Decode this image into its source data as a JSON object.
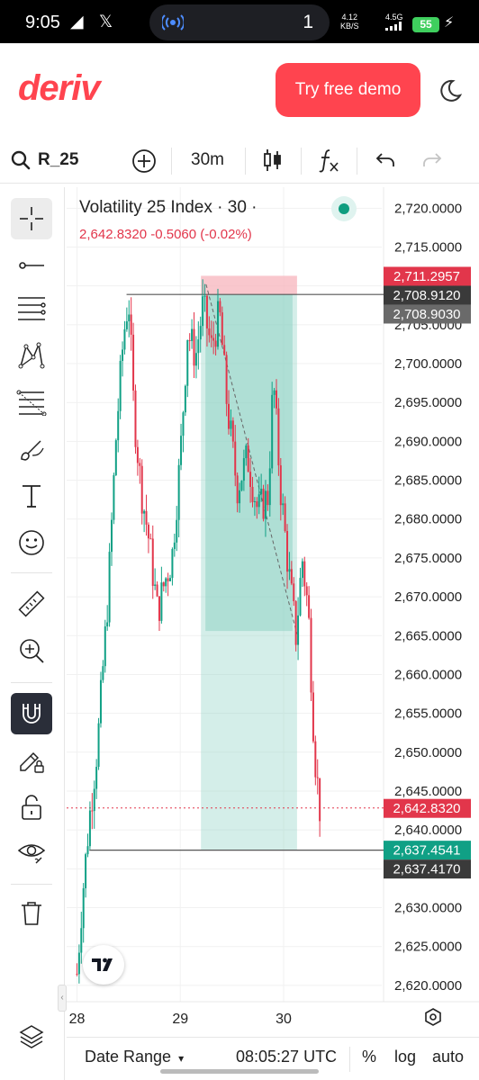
{
  "status_bar": {
    "time": "9:05",
    "app_icons": "◢ 𝕏",
    "pill_count": "1",
    "speed_value": "4.12",
    "speed_unit": "KB/S",
    "network": "4.5G",
    "battery": "55"
  },
  "header": {
    "logo": "deriv",
    "demo_button": "Try free demo"
  },
  "toolbar": {
    "symbol": "R_25",
    "interval": "30m"
  },
  "chart_header": {
    "title": "Volatility 25 Index · 30 ·",
    "quote": "2,642.8320  -0.5060 (-0.02%)"
  },
  "bottom_bar": {
    "date_range": "Date Range",
    "utc_time": "08:05:27 UTC",
    "percent": "%",
    "log": "log",
    "auto": "auto"
  },
  "colors": {
    "up": "#10a085",
    "down": "#e2364b",
    "brand": "#ff444f",
    "profit_zone": "#8fd3c4",
    "loss_zone": "#f7b4bc"
  },
  "chart_data": {
    "type": "candlestick",
    "title": "Volatility 25 Index · 30 ·",
    "x_ticks": [
      "28",
      "29",
      "30"
    ],
    "x_tick_positions": [
      0.0,
      1.0,
      2.0
    ],
    "y_ticks": [
      2720,
      2715,
      2710,
      2705,
      2700,
      2695,
      2690,
      2685,
      2680,
      2675,
      2670,
      2665,
      2660,
      2655,
      2650,
      2645,
      2640,
      2635,
      2630,
      2625,
      2620
    ],
    "y_tick_labels": [
      "2,720.0000",
      "2,715.0000",
      "2,710.0000",
      "2,705.0000",
      "2,700.0000",
      "2,695.0000",
      "2,690.0000",
      "2,685.0000",
      "2,680.0000",
      "2,675.0000",
      "2,670.0000",
      "2,665.0000",
      "2,660.0000",
      "2,655.0000",
      "2,650.0000",
      "2,645.0000",
      "2,640.0000",
      "2,635.0000",
      "2,630.0000",
      "2,625.0000",
      "2,620.0000"
    ],
    "ylim": [
      2617.9,
      2722.7
    ],
    "xlim": [
      -0.1,
      2.95
    ],
    "price_labels": [
      {
        "value": 2711.2957,
        "label": "2,711.2957",
        "kind": "short-stop"
      },
      {
        "value": 2708.912,
        "label": "2,708.9120",
        "kind": "entry"
      },
      {
        "value": 2708.903,
        "label": "2,708.9030",
        "kind": "high-line"
      },
      {
        "value": 2642.832,
        "label": "2,642.8320",
        "kind": "current"
      },
      {
        "value": 2637.4541,
        "label": "2,637.4541",
        "kind": "short-target"
      },
      {
        "value": 2637.417,
        "label": "2,637.4170",
        "kind": "low-line"
      }
    ],
    "horizontal_lines": [
      {
        "value": 2708.9,
        "x_start": 0.48
      },
      {
        "value": 2637.4,
        "x_start": 0.12
      }
    ],
    "position_tool": {
      "type": "short",
      "x_start": 1.2,
      "x_end": 2.13,
      "entry": 2708.91,
      "stop": 2711.3,
      "target": 2637.45,
      "filled_to": 2665.6
    },
    "trend_line": {
      "x1": 1.25,
      "y1": 2710.2,
      "x2": 2.13,
      "y2": 2665.2
    },
    "current_price_line": 2642.832,
    "anchor_points": [
      {
        "x": 0.0,
        "close": 2621.5
      },
      {
        "x": 0.05,
        "close": 2631.0
      },
      {
        "x": 0.12,
        "close": 2641.5
      },
      {
        "x": 0.2,
        "close": 2651.0
      },
      {
        "x": 0.3,
        "close": 2670.0
      },
      {
        "x": 0.38,
        "close": 2691.0
      },
      {
        "x": 0.45,
        "close": 2703.5
      },
      {
        "x": 0.5,
        "close": 2708.5
      },
      {
        "x": 0.55,
        "close": 2694.0
      },
      {
        "x": 0.62,
        "close": 2684.0
      },
      {
        "x": 0.7,
        "close": 2677.0
      },
      {
        "x": 0.78,
        "close": 2668.0
      },
      {
        "x": 0.85,
        "close": 2672.0
      },
      {
        "x": 0.92,
        "close": 2675.0
      },
      {
        "x": 1.0,
        "close": 2688.0
      },
      {
        "x": 1.07,
        "close": 2704.0
      },
      {
        "x": 1.15,
        "close": 2701.0
      },
      {
        "x": 1.22,
        "close": 2707.5
      },
      {
        "x": 1.3,
        "close": 2702.0
      },
      {
        "x": 1.38,
        "close": 2706.5
      },
      {
        "x": 1.45,
        "close": 2695.0
      },
      {
        "x": 1.55,
        "close": 2684.0
      },
      {
        "x": 1.65,
        "close": 2688.0
      },
      {
        "x": 1.75,
        "close": 2681.0
      },
      {
        "x": 1.85,
        "close": 2683.0
      },
      {
        "x": 1.9,
        "close": 2698.0
      },
      {
        "x": 1.97,
        "close": 2684.0
      },
      {
        "x": 2.05,
        "close": 2673.0
      },
      {
        "x": 2.12,
        "close": 2665.0
      },
      {
        "x": 2.18,
        "close": 2675.0
      },
      {
        "x": 2.24,
        "close": 2668.0
      },
      {
        "x": 2.3,
        "close": 2650.0
      },
      {
        "x": 2.35,
        "close": 2642.8
      }
    ]
  }
}
